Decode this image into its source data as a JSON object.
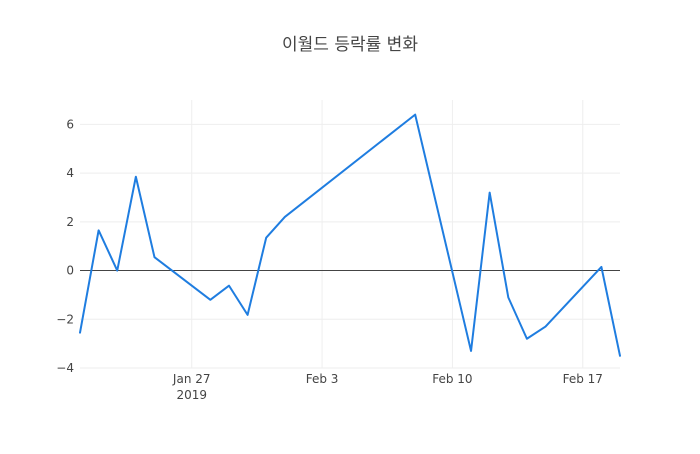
{
  "chart_data": {
    "type": "line",
    "title": "이월드 등락률 변화",
    "xlabel": "",
    "ylabel": "",
    "x": [
      "2019-01-21",
      "2019-01-22",
      "2019-01-23",
      "2019-01-24",
      "2019-01-25",
      "2019-01-28",
      "2019-01-29",
      "2019-01-30",
      "2019-01-31",
      "2019-02-01",
      "2019-02-08",
      "2019-02-11",
      "2019-02-12",
      "2019-02-13",
      "2019-02-14",
      "2019-02-15",
      "2019-02-18",
      "2019-02-19"
    ],
    "series": [
      {
        "values": [
          -2.55,
          1.65,
          0.0,
          3.85,
          0.55,
          -1.2,
          -0.62,
          -1.82,
          1.35,
          2.2,
          6.4,
          -3.3,
          3.2,
          -1.1,
          -2.8,
          -2.3,
          0.15,
          -3.5
        ],
        "color": "#1f7de0"
      }
    ],
    "xlim": [
      "2019-01-21",
      "2019-02-19"
    ],
    "ylim": [
      -4,
      7
    ],
    "y_ticks": [
      6,
      4,
      2,
      0,
      -2,
      -4
    ],
    "y_tick_labels": [
      "6",
      "4",
      "2",
      "0",
      "−2",
      "−4"
    ],
    "x_ticks": [
      {
        "date": "2019-01-27",
        "label": "Jan 27",
        "sub": "2019"
      },
      {
        "date": "2019-02-03",
        "label": "Feb 3",
        "sub": ""
      },
      {
        "date": "2019-02-10",
        "label": "Feb 10",
        "sub": ""
      },
      {
        "date": "2019-02-17",
        "label": "Feb 17",
        "sub": ""
      }
    ],
    "grid": true,
    "zero_line": true
  }
}
